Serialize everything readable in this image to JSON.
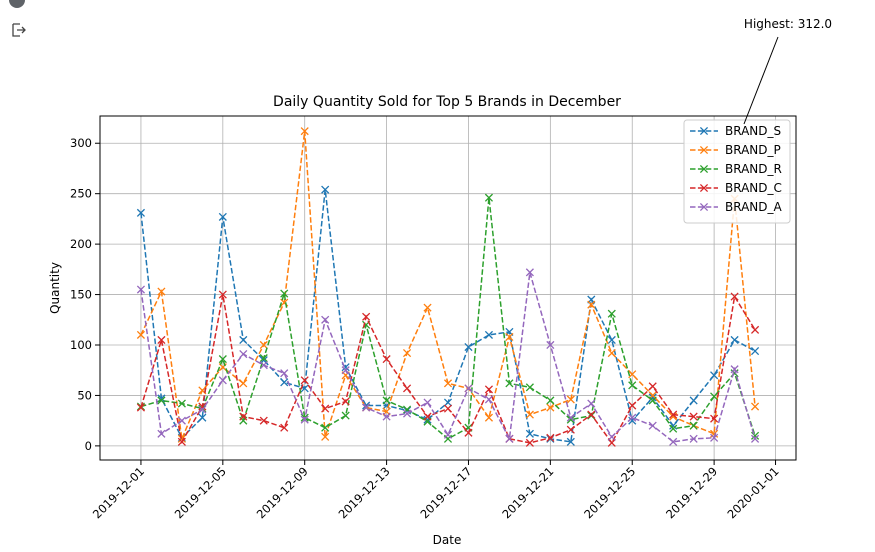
{
  "chart_data": {
    "type": "line",
    "title": "Daily Quantity Sold for Top 5 Brands in December",
    "xlabel": "Date",
    "ylabel": "Quantity",
    "xlim": [
      "2019-11-29",
      "2020-01-02"
    ],
    "ylim": [
      -14,
      327
    ],
    "x_ticks": [
      "2019-12-01",
      "2019-12-05",
      "2019-12-09",
      "2019-12-13",
      "2019-12-17",
      "2019-12-21",
      "2019-12-25",
      "2019-12-29",
      "2020-01-01"
    ],
    "y_ticks": [
      0,
      50,
      100,
      150,
      200,
      250,
      300
    ],
    "grid": true,
    "legend_position": "top-right",
    "line_style": "dashed",
    "marker": "x",
    "annotation": {
      "text": "Highest: 312.0",
      "x": "2019-12-09",
      "y": 312.0
    },
    "x": [
      "2019-12-01",
      "2019-12-02",
      "2019-12-03",
      "2019-12-04",
      "2019-12-05",
      "2019-12-06",
      "2019-12-07",
      "2019-12-08",
      "2019-12-09",
      "2019-12-10",
      "2019-12-11",
      "2019-12-12",
      "2019-12-13",
      "2019-12-14",
      "2019-12-15",
      "2019-12-16",
      "2019-12-17",
      "2019-12-18",
      "2019-12-19",
      "2019-12-20",
      "2019-12-21",
      "2019-12-22",
      "2019-12-23",
      "2019-12-24",
      "2019-12-25",
      "2019-12-26",
      "2019-12-27",
      "2019-12-28",
      "2019-12-29",
      "2019-12-30",
      "2019-12-31"
    ],
    "series": [
      {
        "name": "BRAND_S",
        "color": "#1f77b4",
        "values": [
          231,
          47,
          8,
          28,
          227,
          105,
          85,
          63,
          57,
          254,
          78,
          40,
          40,
          35,
          26,
          43,
          98,
          110,
          113,
          12,
          7,
          4,
          145,
          105,
          25,
          48,
          20,
          45,
          70,
          105,
          94
        ]
      },
      {
        "name": "BRAND_P",
        "color": "#ff7f0e",
        "values": [
          110,
          153,
          7,
          55,
          78,
          62,
          100,
          142,
          312,
          9,
          70,
          38,
          34,
          92,
          137,
          62,
          57,
          28,
          108,
          31,
          38,
          46,
          140,
          92,
          71,
          50,
          29,
          20,
          12,
          245,
          39
        ]
      },
      {
        "name": "BRAND_R",
        "color": "#2ca02c",
        "values": [
          39,
          45,
          42,
          37,
          86,
          25,
          87,
          151,
          28,
          18,
          30,
          120,
          45,
          36,
          24,
          7,
          18,
          246,
          62,
          58,
          45,
          26,
          30,
          131,
          60,
          45,
          17,
          20,
          49,
          72,
          10
        ]
      },
      {
        "name": "BRAND_C",
        "color": "#d62728",
        "values": [
          38,
          105,
          4,
          39,
          150,
          29,
          25,
          18,
          65,
          37,
          44,
          128,
          86,
          57,
          29,
          37,
          13,
          56,
          7,
          3,
          8,
          16,
          31,
          3,
          40,
          59,
          31,
          29,
          27,
          148,
          115
        ]
      },
      {
        "name": "BRAND_A",
        "color": "#9467bd",
        "values": [
          155,
          12,
          25,
          36,
          65,
          91,
          80,
          72,
          26,
          125,
          75,
          38,
          29,
          32,
          43,
          11,
          57,
          46,
          7,
          172,
          100,
          28,
          42,
          9,
          28,
          20,
          4,
          7,
          8,
          76,
          7
        ]
      }
    ]
  }
}
